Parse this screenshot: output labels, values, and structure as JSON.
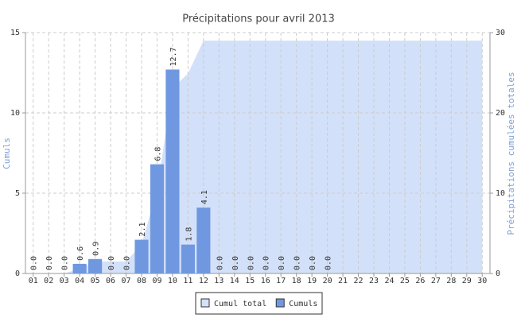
{
  "chart_data": {
    "type": "bar",
    "title": "Précipitations pour avril 2013",
    "ylabel": "Cumuls",
    "y2label": "Précipitations cumulées totales",
    "categories": [
      "01",
      "02",
      "03",
      "04",
      "05",
      "06",
      "07",
      "08",
      "09",
      "10",
      "11",
      "12",
      "13",
      "14",
      "15",
      "16",
      "17",
      "18",
      "19",
      "20",
      "21",
      "22",
      "23",
      "24",
      "25",
      "26",
      "27",
      "28",
      "29",
      "30"
    ],
    "series": [
      {
        "name": "Cumul total",
        "type": "area",
        "axis": "y2",
        "color": "#d3e0f9",
        "values": [
          0,
          0,
          0,
          0.6,
          1.5,
          1.5,
          1.5,
          3.6,
          10.4,
          23.1,
          24.9,
          29.0,
          29.0,
          29.0,
          29.0,
          29.0,
          29.0,
          29.0,
          29.0,
          29.0,
          29.0,
          29.0,
          29.0,
          29.0,
          29.0,
          29.0,
          29.0,
          29.0,
          29.0,
          29.0
        ]
      },
      {
        "name": "Cumuls",
        "type": "bar",
        "color": "#6f98e0",
        "values": [
          0,
          0,
          0,
          0.6,
          0.9,
          0,
          0,
          2.1,
          6.8,
          12.7,
          1.8,
          4.1,
          0,
          0,
          0,
          0,
          0,
          0,
          0,
          0,
          null,
          null,
          null,
          null,
          null,
          null,
          null,
          null,
          null,
          null
        ],
        "value_labels": [
          "0.0",
          "0.0",
          "0.0",
          "0.6",
          "0.9",
          "0.0",
          "0.0",
          "2.1",
          "6.8",
          "12.7",
          "1.8",
          "4.1",
          "0.0",
          "0.0",
          "0.0",
          "0.0",
          "0.0",
          "0.0",
          "0.0",
          "0.0",
          null,
          null,
          null,
          null,
          null,
          null,
          null,
          null,
          null,
          null
        ]
      }
    ],
    "ylim": [
      0,
      15
    ],
    "yticks": [
      0,
      5,
      10,
      15
    ],
    "y2lim": [
      0,
      30
    ],
    "y2ticks": [
      0,
      10,
      20,
      30
    ],
    "grid": true,
    "legend": "bottom"
  }
}
